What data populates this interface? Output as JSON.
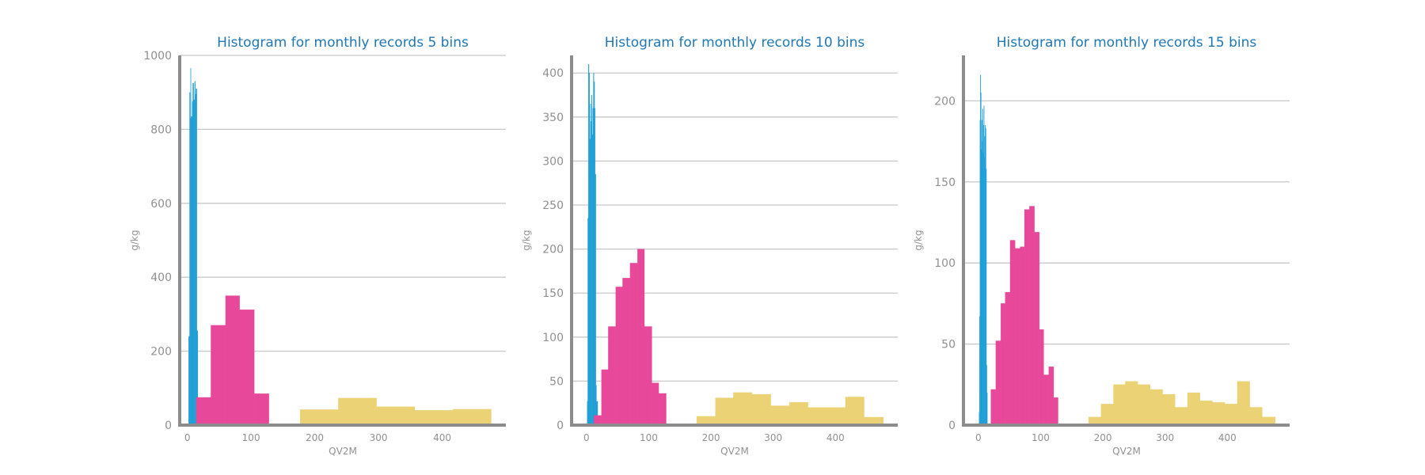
{
  "colors": {
    "grid": "#c8c8c8",
    "axis": "#8c8c8c",
    "title": "#1f77b4",
    "series_1": "#1f9fd6",
    "series_2": "#e8489a",
    "series_3": "#ead275"
  },
  "chart_data": [
    {
      "type": "bar",
      "title": "Histogram for monthly records 5 bins",
      "xlabel": "QV2M",
      "ylabel": "g/kg",
      "xlim": [
        -12,
        500
      ],
      "ylim": [
        0,
        1000
      ],
      "grid": true,
      "x_ticks": [
        0,
        100,
        200,
        300,
        400
      ],
      "y_ticks": [
        0,
        200,
        400,
        600,
        800,
        1000
      ],
      "series": [
        {
          "color": "#1f9fd6",
          "bins": [
            [
              2.0,
              3.5,
              240
            ],
            [
              3.5,
              4.3,
              900
            ],
            [
              4.3,
              5.0,
              830
            ],
            [
              5.0,
              5.5,
              965
            ],
            [
              5.5,
              6.2,
              830
            ],
            [
              6.2,
              7.5,
              835
            ],
            [
              7.5,
              8.5,
              875
            ],
            [
              8.5,
              10.0,
              925
            ],
            [
              10.0,
              11.5,
              880
            ],
            [
              11.5,
              12.5,
              930
            ],
            [
              12.5,
              13.5,
              895
            ],
            [
              13.5,
              15.0,
              910
            ],
            [
              15.0,
              16.5,
              255
            ]
          ]
        },
        {
          "color": "#e8489a",
          "bins": [
            [
              14.0,
              37.0,
              75
            ],
            [
              37.0,
              60.0,
              270
            ],
            [
              60.0,
              82.0,
              350
            ],
            [
              82.0,
              105.0,
              312
            ],
            [
              105.0,
              128.0,
              85
            ]
          ]
        },
        {
          "color": "#ead275",
          "bins": [
            [
              177.0,
              237.0,
              42
            ],
            [
              237.0,
              297.0,
              73
            ],
            [
              297.0,
              357.0,
              50
            ],
            [
              357.0,
              417.0,
              40
            ],
            [
              417.0,
              477.0,
              43
            ]
          ]
        }
      ]
    },
    {
      "type": "bar",
      "title": "Histogram for monthly records 10 bins",
      "xlabel": "QV2M",
      "ylabel": "g/kg",
      "xlim": [
        -24,
        500
      ],
      "ylim": [
        0,
        420
      ],
      "grid": true,
      "x_ticks": [
        0,
        100,
        200,
        300,
        400
      ],
      "y_ticks": [
        0,
        50,
        100,
        150,
        200,
        250,
        300,
        350,
        400
      ],
      "series": [
        {
          "color": "#1f9fd6",
          "bins": [
            [
              1.0,
              2.0,
              27
            ],
            [
              2.0,
              3.0,
              235
            ],
            [
              3.0,
              4.0,
              410
            ],
            [
              4.0,
              5.0,
              400
            ],
            [
              5.0,
              6.0,
              325
            ],
            [
              6.0,
              7.0,
              365
            ],
            [
              7.0,
              8.0,
              345
            ],
            [
              8.0,
              9.0,
              375
            ],
            [
              9.0,
              10.0,
              330
            ],
            [
              10.0,
              11.0,
              360
            ],
            [
              11.0,
              12.0,
              400
            ],
            [
              12.0,
              13.0,
              390
            ],
            [
              13.0,
              14.0,
              360
            ],
            [
              14.0,
              15.0,
              285
            ],
            [
              15.0,
              16.0,
              45
            ],
            [
              16.0,
              18.0,
              27
            ]
          ]
        },
        {
          "color": "#e8489a",
          "bins": [
            [
              12.0,
              24.0,
              11
            ],
            [
              24.0,
              35.0,
              63
            ],
            [
              35.0,
              47.0,
              112
            ],
            [
              47.0,
              58.0,
              157
            ],
            [
              58.0,
              70.0,
              167
            ],
            [
              70.0,
              82.0,
              184
            ],
            [
              82.0,
              93.0,
              200
            ],
            [
              93.0,
              105.0,
              112
            ],
            [
              105.0,
              116.0,
              48
            ],
            [
              116.0,
              128.0,
              36
            ]
          ]
        },
        {
          "color": "#ead275",
          "bins": [
            [
              177.0,
              207.0,
              10
            ],
            [
              207.0,
              236.0,
              31
            ],
            [
              236.0,
              266.0,
              37
            ],
            [
              266.0,
              296.0,
              35
            ],
            [
              296.0,
              326.0,
              22
            ],
            [
              326.0,
              356.0,
              26
            ],
            [
              356.0,
              386.0,
              20
            ],
            [
              386.0,
              416.0,
              20
            ],
            [
              416.0,
              446.0,
              32
            ],
            [
              446.0,
              477.0,
              9
            ]
          ]
        }
      ]
    },
    {
      "type": "bar",
      "title": "Histogram for monthly records 15 bins",
      "xlabel": "QV2M",
      "ylabel": "g/kg",
      "xlim": [
        -24,
        500
      ],
      "ylim": [
        0,
        228
      ],
      "grid": true,
      "x_ticks": [
        0,
        100,
        200,
        300,
        400
      ],
      "y_ticks": [
        0,
        50,
        100,
        150,
        200
      ],
      "series": [
        {
          "color": "#1f9fd6",
          "bins": [
            [
              1.0,
              1.7,
              8
            ],
            [
              1.7,
              2.4,
              67
            ],
            [
              2.4,
              3.1,
              188
            ],
            [
              3.1,
              3.8,
              216
            ],
            [
              3.8,
              4.5,
              205
            ],
            [
              4.5,
              5.2,
              170
            ],
            [
              5.2,
              5.9,
              188
            ],
            [
              5.9,
              6.6,
              175
            ],
            [
              6.6,
              7.3,
              195
            ],
            [
              7.3,
              8.0,
              168
            ],
            [
              8.0,
              8.7,
              185
            ],
            [
              8.7,
              9.4,
              197
            ],
            [
              9.4,
              10.1,
              165
            ],
            [
              10.1,
              10.8,
              178
            ],
            [
              10.8,
              11.5,
              185
            ],
            [
              11.5,
              12.2,
              183
            ],
            [
              12.2,
              12.9,
              158
            ],
            [
              12.9,
              13.6,
              37
            ],
            [
              13.6,
              14.5,
              20
            ]
          ]
        },
        {
          "color": "#e8489a",
          "bins": [
            [
              20.0,
              28.0,
              22
            ],
            [
              28.0,
              36.0,
              52
            ],
            [
              36.0,
              43.0,
              75
            ],
            [
              43.0,
              51.0,
              82
            ],
            [
              51.0,
              59.0,
              114
            ],
            [
              59.0,
              67.0,
              109
            ],
            [
              67.0,
              74.0,
              110
            ],
            [
              74.0,
              82.0,
              133
            ],
            [
              82.0,
              90.0,
              135
            ],
            [
              90.0,
              98.0,
              119
            ],
            [
              98.0,
              105.0,
              59
            ],
            [
              105.0,
              113.0,
              31
            ],
            [
              113.0,
              121.0,
              36
            ],
            [
              121.0,
              128.0,
              17
            ]
          ]
        },
        {
          "color": "#ead275",
          "bins": [
            [
              177.0,
              197.0,
              5
            ],
            [
              197.0,
              217.0,
              13
            ],
            [
              217.0,
              236.0,
              25
            ],
            [
              236.0,
              256.0,
              27
            ],
            [
              256.0,
              276.0,
              25
            ],
            [
              276.0,
              296.0,
              22
            ],
            [
              296.0,
              316.0,
              19
            ],
            [
              316.0,
              336.0,
              11
            ],
            [
              336.0,
              356.0,
              20
            ],
            [
              356.0,
              376.0,
              15
            ],
            [
              376.0,
              396.0,
              14
            ],
            [
              396.0,
              416.0,
              13
            ],
            [
              416.0,
              436.0,
              27
            ],
            [
              436.0,
              456.0,
              11
            ],
            [
              456.0,
              477.0,
              5
            ]
          ]
        }
      ]
    }
  ]
}
